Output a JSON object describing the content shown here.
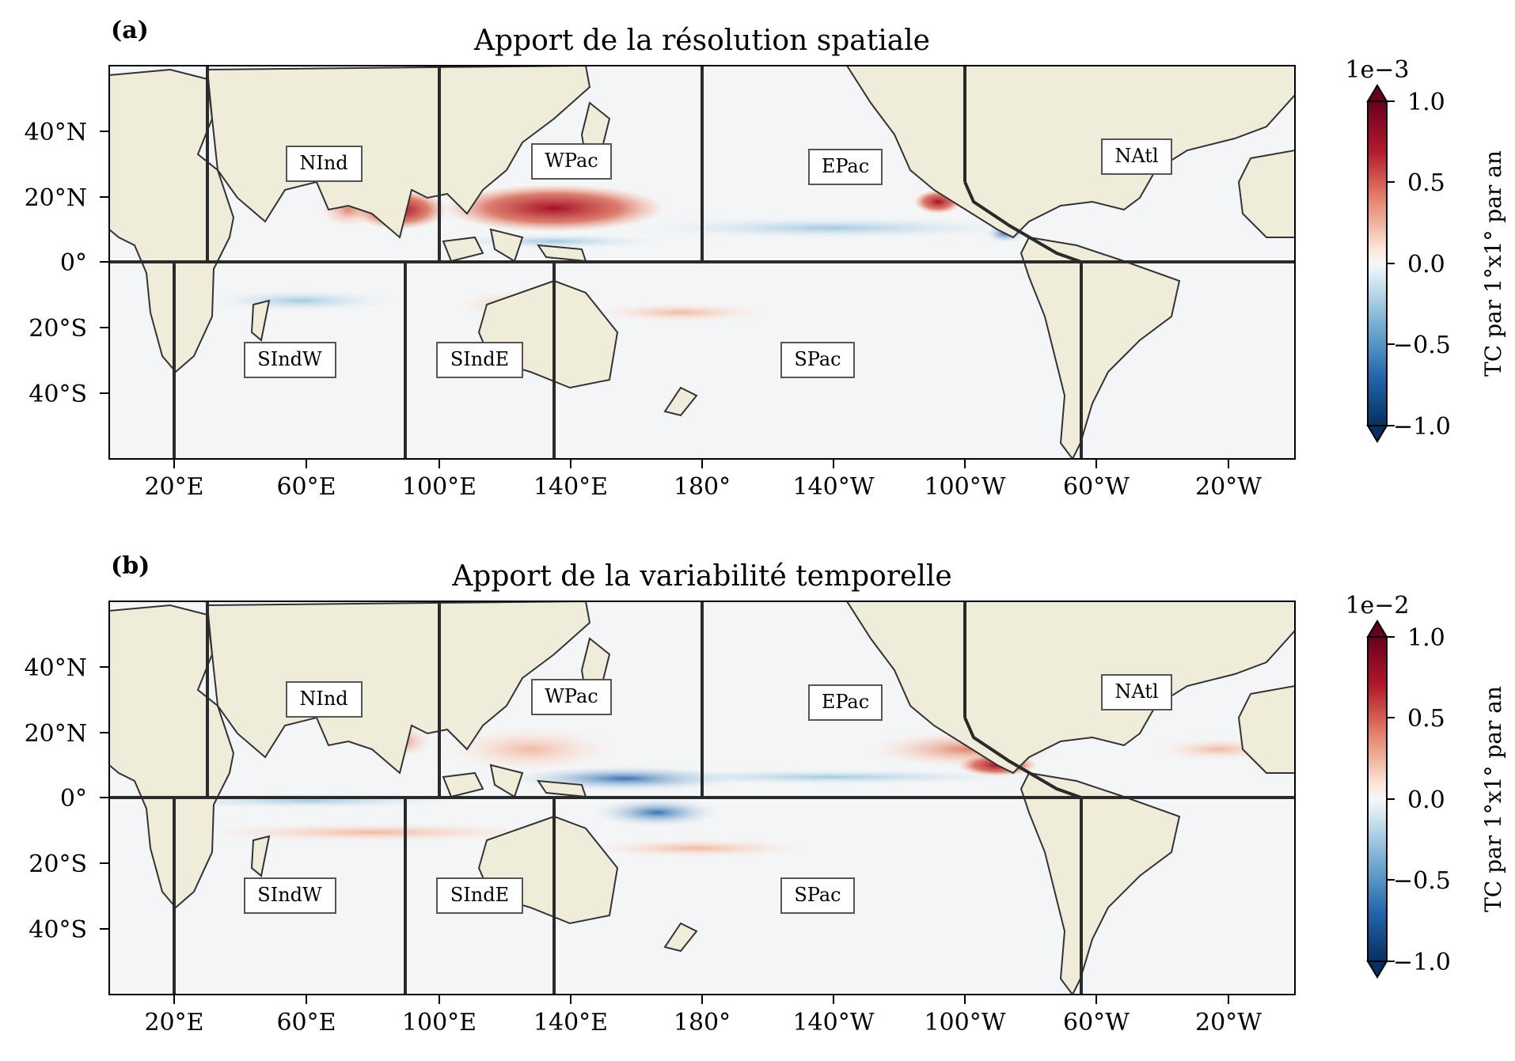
{
  "panels": [
    {
      "label": "(a)",
      "title": "Apport de la résolution spatiale",
      "colorbar": {
        "exponent": "1e−3",
        "label": "TC par 1°x1° par an",
        "ticks": [
          "1.0",
          "0.5",
          "0.0",
          "−0.5",
          "−1.0"
        ]
      }
    },
    {
      "label": "(b)",
      "title": "Apport de la variabilité temporelle",
      "colorbar": {
        "exponent": "1e−2",
        "label": "TC par 1°x1° par an",
        "ticks": [
          "1.0",
          "0.5",
          "0.0",
          "−0.5",
          "−1.0"
        ]
      }
    }
  ],
  "axes": {
    "lat_ticks": [
      "40°N",
      "20°N",
      "0°",
      "20°S",
      "40°S"
    ],
    "lon_ticks": [
      "20°E",
      "60°E",
      "100°E",
      "140°E",
      "180°",
      "140°W",
      "100°W",
      "60°W",
      "20°W"
    ]
  },
  "regions": [
    "NInd",
    "WPac",
    "EPac",
    "NAtl",
    "SIndW",
    "SIndE",
    "SPac"
  ],
  "colors": {
    "land": "#efedda",
    "ocean": "#f4f5f6",
    "positive": "#b2182b",
    "negative": "#2166ac",
    "border": "#2a2a2a"
  },
  "colormap": "RdBu_r",
  "map_extent": {
    "lon": [
      0,
      360
    ],
    "lat": [
      -60,
      60
    ]
  }
}
